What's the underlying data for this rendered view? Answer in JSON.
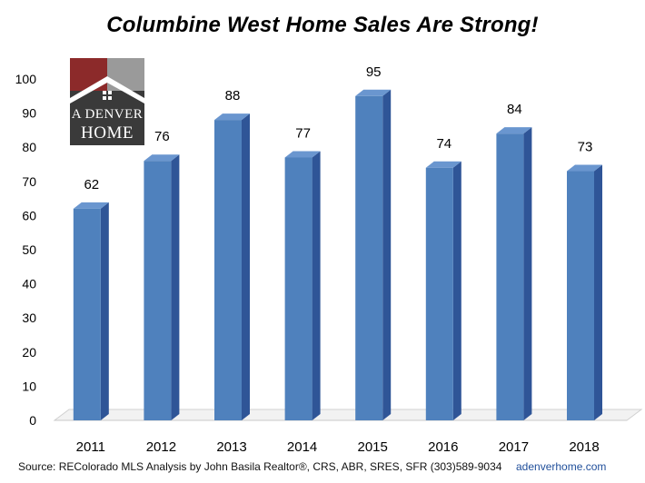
{
  "chart_data": {
    "type": "bar",
    "title": "Columbine West Home Sales Are Strong!",
    "categories": [
      "2011",
      "2012",
      "2013",
      "2014",
      "2015",
      "2016",
      "2017",
      "2018"
    ],
    "values": [
      62,
      76,
      88,
      77,
      95,
      74,
      84,
      73
    ],
    "ylim": [
      0,
      100
    ],
    "yticks": [
      0,
      10,
      20,
      30,
      40,
      50,
      60,
      70,
      80,
      90,
      100
    ],
    "xlabel": "",
    "ylabel": "",
    "grid": false,
    "legend": "none",
    "bar_color": "#4f81bd",
    "bar_side_color": "#2f5597",
    "bar_top_color": "#6a96cf"
  },
  "logo": {
    "line1": "A DENVER",
    "line2": "HOME"
  },
  "footer": {
    "source": "Source: REColorado MLS  Analysis by John Basila  Realtor®, CRS, ABR, SRES, SFR  (303)589-9034",
    "site": "adenverhome.com"
  }
}
